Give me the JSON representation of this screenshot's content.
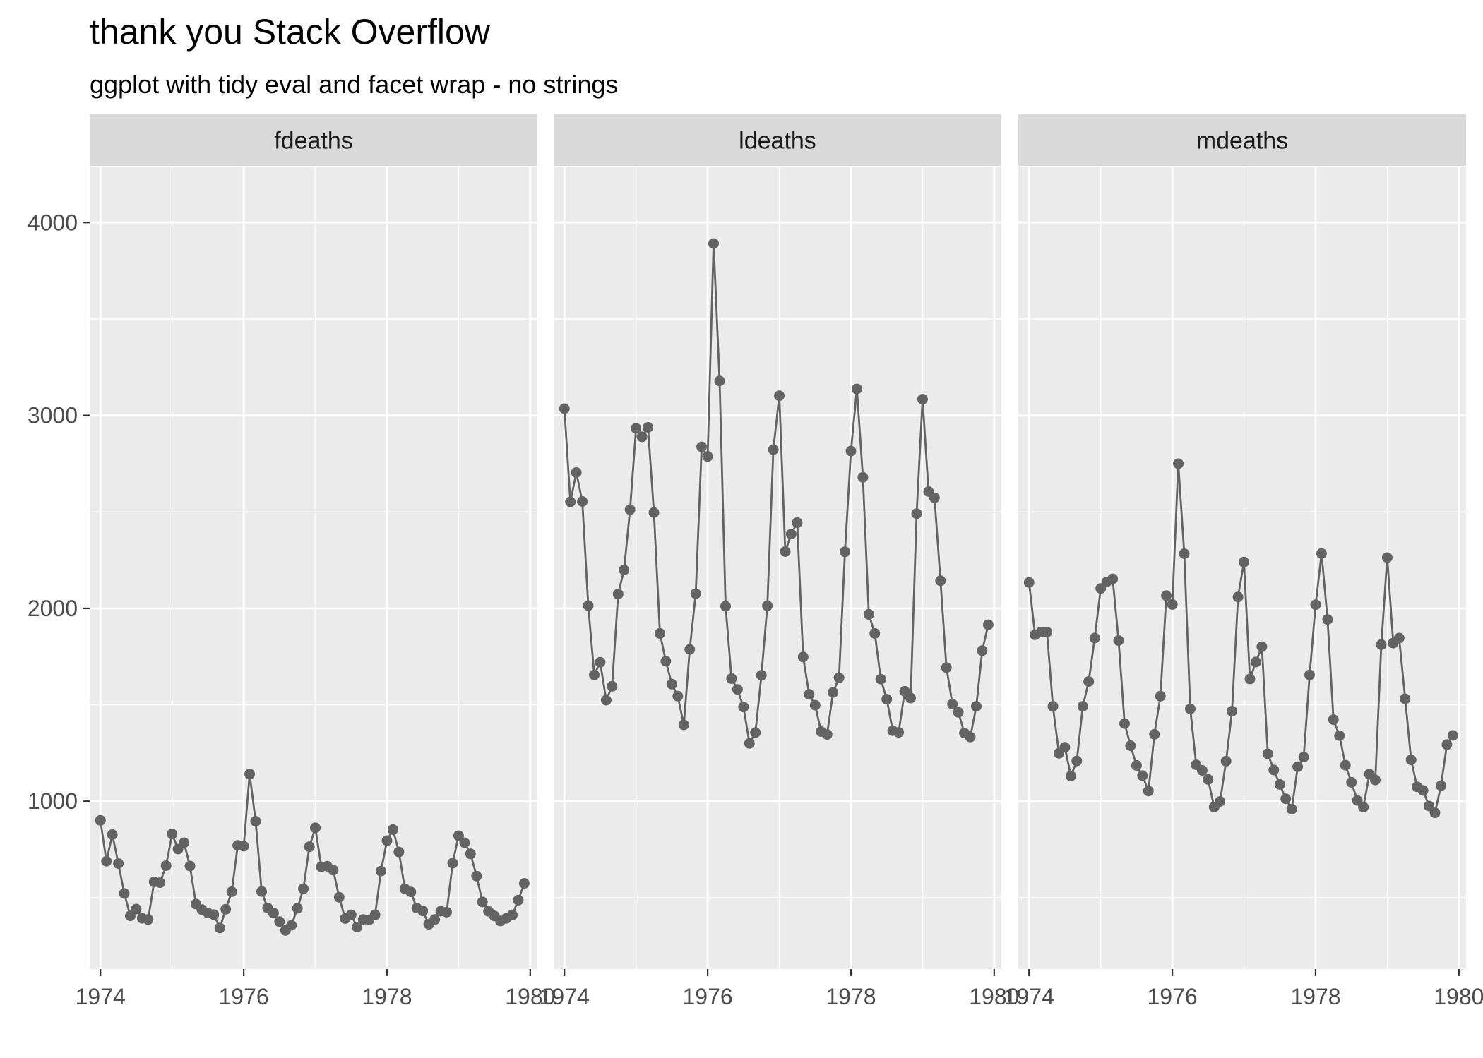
{
  "chart_data": {
    "type": "line",
    "title": "thank you Stack Overflow",
    "subtitle": "ggplot with tidy eval and facet wrap - no strings",
    "xlabel": "",
    "ylabel": "",
    "markers": true,
    "shared_y": true,
    "xlim": [
      1973.85,
      1980.1
    ],
    "ylim": [
      130,
      4290
    ],
    "x_ticks": [
      "1974",
      "1976",
      "1978",
      "1980"
    ],
    "y_ticks": [
      "1000",
      "2000",
      "3000",
      "4000"
    ],
    "x_tick_values": [
      1974,
      1976,
      1978,
      1980
    ],
    "y_tick_values": [
      1000,
      2000,
      3000,
      4000
    ],
    "grid": true,
    "x_start": 1974,
    "x_step": 0.0833333,
    "colors": {
      "panel_bg": "#ebebeb",
      "strip_bg": "#d9d9d9",
      "grid": "#ffffff",
      "series": "#636363"
    },
    "facets": [
      {
        "name": "fdeaths",
        "values": [
          901,
          689,
          827,
          677,
          522,
          406,
          441,
          393,
          387,
          582,
          578,
          666,
          830,
          752,
          785,
          664,
          467,
          438,
          421,
          412,
          343,
          440,
          531,
          771,
          767,
          1141,
          896,
          532,
          447,
          420,
          376,
          330,
          357,
          445,
          546,
          764,
          862,
          660,
          663,
          643,
          502,
          392,
          411,
          348,
          387,
          385,
          411,
          638,
          796,
          853,
          737,
          546,
          530,
          446,
          431,
          362,
          387,
          430,
          425,
          679,
          821,
          785,
          727,
          612,
          478,
          429,
          405,
          379,
          393,
          411,
          487,
          574
        ]
      },
      {
        "name": "ldeaths",
        "values": [
          3035,
          2552,
          2704,
          2554,
          2014,
          1655,
          1721,
          1524,
          1596,
          2074,
          2199,
          2512,
          2933,
          2889,
          2938,
          2497,
          1870,
          1726,
          1607,
          1545,
          1396,
          1787,
          2076,
          2837,
          2787,
          3891,
          3179,
          2011,
          1636,
          1580,
          1489,
          1300,
          1356,
          1653,
          2013,
          2823,
          3102,
          2294,
          2385,
          2444,
          1748,
          1554,
          1498,
          1361,
          1346,
          1564,
          1640,
          2293,
          2815,
          3137,
          2679,
          1969,
          1870,
          1633,
          1529,
          1366,
          1357,
          1570,
          1535,
          2491,
          3084,
          2605,
          2573,
          2143,
          1693,
          1504,
          1461,
          1354,
          1333,
          1492,
          1781,
          1915
        ]
      },
      {
        "name": "mdeaths",
        "values": [
          2134,
          1863,
          1877,
          1877,
          1492,
          1249,
          1280,
          1131,
          1209,
          1492,
          1621,
          1846,
          2103,
          2137,
          2153,
          1833,
          1403,
          1288,
          1186,
          1133,
          1053,
          1347,
          1545,
          2066,
          2020,
          2750,
          2283,
          1479,
          1189,
          1160,
          1113,
          970,
          999,
          1208,
          1467,
          2059,
          2240,
          1634,
          1722,
          1801,
          1246,
          1162,
          1087,
          1013,
          959,
          1179,
          1229,
          1655,
          2019,
          2284,
          1942,
          1423,
          1340,
          1187,
          1098,
          1004,
          970,
          1140,
          1110,
          1812,
          2263,
          1820,
          1846,
          1531,
          1215,
          1075,
          1056,
          975,
          940,
          1081,
          1294,
          1341
        ]
      }
    ]
  }
}
